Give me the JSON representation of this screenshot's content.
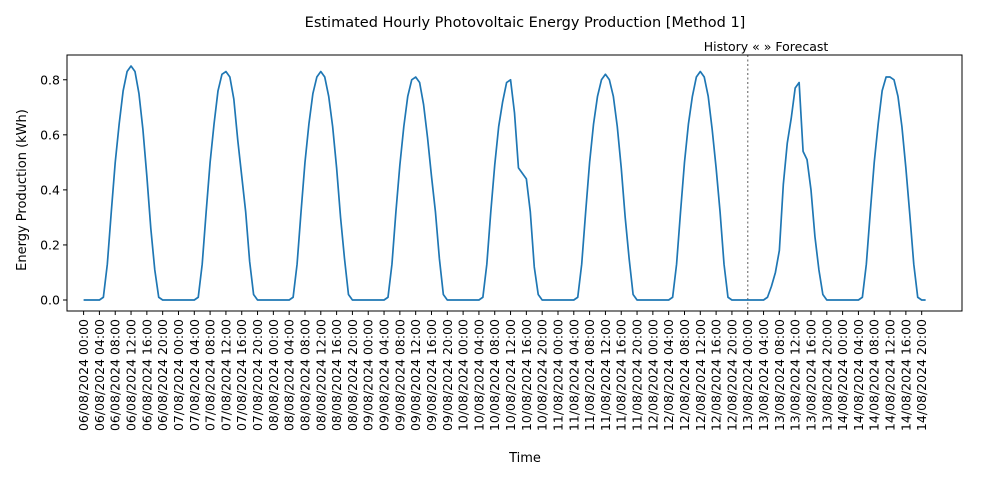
{
  "chart_data": {
    "type": "line",
    "title": "Estimated Hourly Photovoltaic Energy Production [Method 1]",
    "xlabel": "Time",
    "ylabel": "Energy Production (kWh)",
    "ylim": [
      -0.04,
      0.89
    ],
    "yticks": [
      0.0,
      0.2,
      0.4,
      0.6,
      0.8
    ],
    "ytick_labels": [
      "0.0",
      "0.2",
      "0.4",
      "0.6",
      "0.8"
    ],
    "xlim_hours": [
      -4.2,
      222.2
    ],
    "xtick_labels": [
      "06/08/2024 00:00",
      "06/08/2024 04:00",
      "06/08/2024 08:00",
      "06/08/2024 12:00",
      "06/08/2024 16:00",
      "06/08/2024 20:00",
      "07/08/2024 00:00",
      "07/08/2024 04:00",
      "07/08/2024 08:00",
      "07/08/2024 12:00",
      "07/08/2024 16:00",
      "07/08/2024 20:00",
      "08/08/2024 00:00",
      "08/08/2024 04:00",
      "08/08/2024 08:00",
      "08/08/2024 12:00",
      "08/08/2024 16:00",
      "08/08/2024 20:00",
      "09/08/2024 00:00",
      "09/08/2024 04:00",
      "09/08/2024 08:00",
      "09/08/2024 12:00",
      "09/08/2024 16:00",
      "09/08/2024 20:00",
      "10/08/2024 00:00",
      "10/08/2024 04:00",
      "10/08/2024 08:00",
      "10/08/2024 12:00",
      "10/08/2024 16:00",
      "10/08/2024 20:00",
      "11/08/2024 00:00",
      "11/08/2024 04:00",
      "11/08/2024 08:00",
      "11/08/2024 12:00",
      "11/08/2024 16:00",
      "11/08/2024 20:00",
      "12/08/2024 00:00",
      "12/08/2024 04:00",
      "12/08/2024 08:00",
      "12/08/2024 12:00",
      "12/08/2024 16:00",
      "12/08/2024 20:00",
      "13/08/2024 00:00",
      "13/08/2024 04:00",
      "13/08/2024 08:00",
      "13/08/2024 12:00",
      "13/08/2024 16:00",
      "13/08/2024 20:00",
      "14/08/2024 00:00",
      "14/08/2024 04:00",
      "14/08/2024 08:00",
      "14/08/2024 12:00",
      "14/08/2024 16:00",
      "14/08/2024 20:00"
    ],
    "divider": {
      "label": "History «  » Forecast",
      "x_label": "13/08/2024 00:00",
      "color": "#808080"
    },
    "series": [
      {
        "color": "#1f77b4",
        "x_start": "06/08/2024 00:00",
        "x_step": "1 hour",
        "values": [
          0,
          0,
          0,
          0,
          0,
          0.01,
          0.13,
          0.32,
          0.5,
          0.64,
          0.76,
          0.83,
          0.85,
          0.83,
          0.75,
          0.62,
          0.45,
          0.26,
          0.11,
          0.01,
          0,
          0,
          0,
          0,
          0,
          0,
          0,
          0,
          0,
          0.01,
          0.13,
          0.32,
          0.5,
          0.64,
          0.76,
          0.82,
          0.83,
          0.81,
          0.73,
          0.58,
          0.45,
          0.32,
          0.14,
          0.02,
          0,
          0,
          0,
          0,
          0,
          0,
          0,
          0,
          0,
          0.01,
          0.13,
          0.32,
          0.5,
          0.64,
          0.75,
          0.81,
          0.83,
          0.81,
          0.74,
          0.63,
          0.48,
          0.3,
          0.15,
          0.02,
          0,
          0,
          0,
          0,
          0,
          0,
          0,
          0,
          0,
          0.01,
          0.13,
          0.32,
          0.49,
          0.63,
          0.74,
          0.8,
          0.81,
          0.79,
          0.71,
          0.59,
          0.45,
          0.32,
          0.15,
          0.02,
          0,
          0,
          0,
          0,
          0,
          0,
          0,
          0,
          0,
          0.01,
          0.13,
          0.32,
          0.49,
          0.63,
          0.72,
          0.79,
          0.8,
          0.68,
          0.48,
          0.46,
          0.44,
          0.32,
          0.12,
          0.02,
          0,
          0,
          0,
          0,
          0,
          0,
          0,
          0,
          0,
          0.01,
          0.13,
          0.32,
          0.5,
          0.64,
          0.74,
          0.8,
          0.82,
          0.8,
          0.74,
          0.63,
          0.48,
          0.3,
          0.15,
          0.02,
          0,
          0,
          0,
          0,
          0,
          0,
          0,
          0,
          0,
          0.01,
          0.13,
          0.32,
          0.5,
          0.64,
          0.74,
          0.81,
          0.83,
          0.81,
          0.74,
          0.62,
          0.48,
          0.32,
          0.13,
          0.01,
          0,
          0,
          0,
          0,
          0,
          0,
          0,
          0,
          0,
          0.01,
          0.05,
          0.1,
          0.18,
          0.42,
          0.57,
          0.66,
          0.77,
          0.79,
          0.54,
          0.51,
          0.4,
          0.23,
          0.11,
          0.02,
          0,
          0,
          0,
          0,
          0,
          0,
          0,
          0,
          0,
          0.01,
          0.13,
          0.32,
          0.5,
          0.64,
          0.76,
          0.81,
          0.81,
          0.8,
          0.74,
          0.63,
          0.48,
          0.31,
          0.13,
          0.01,
          0,
          0
        ]
      }
    ]
  }
}
